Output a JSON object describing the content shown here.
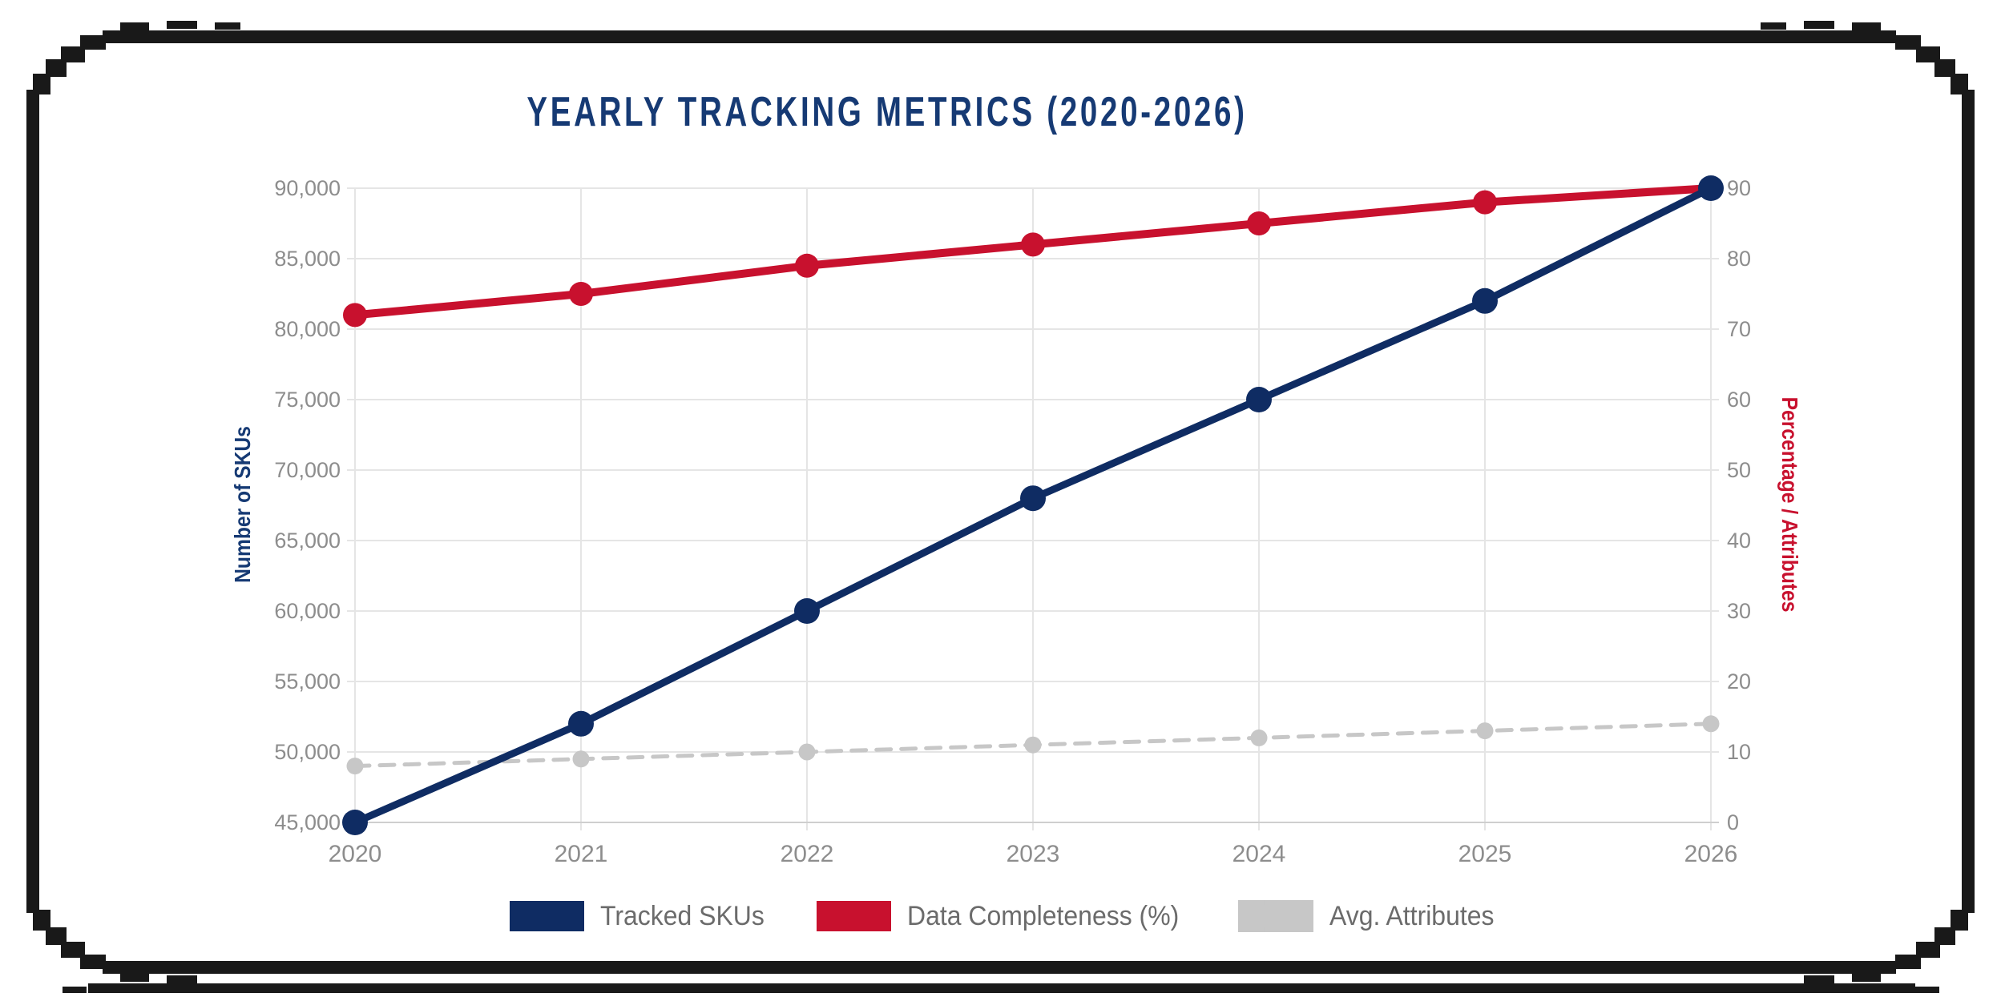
{
  "chart_data": {
    "type": "line",
    "title": "YEARLY TRACKING METRICS (2020-2026)",
    "categories": [
      "2020",
      "2021",
      "2022",
      "2023",
      "2024",
      "2025",
      "2026"
    ],
    "series": [
      {
        "name": "Tracked SKUs",
        "axis": "left",
        "style": "solid",
        "color": "#0f2c63",
        "values": [
          45000,
          52000,
          60000,
          68000,
          75000,
          82000,
          90000
        ]
      },
      {
        "name": "Data Completeness (%)",
        "axis": "right",
        "style": "solid",
        "color": "#c8112e",
        "values": [
          72,
          75,
          79,
          82,
          85,
          88,
          90
        ]
      },
      {
        "name": "Avg. Attributes",
        "axis": "right",
        "style": "dashed",
        "color": "#c7c7c7",
        "values": [
          8,
          9,
          10,
          11,
          12,
          13,
          14
        ]
      }
    ],
    "left_axis": {
      "label": "Number of SKUs",
      "min": 45000,
      "max": 90000,
      "step": 5000,
      "color": "#163a74"
    },
    "right_axis": {
      "label": "Percentage / Attributes",
      "min": 0,
      "max": 90,
      "step": 10,
      "color": "#c8112e"
    },
    "grid": true,
    "legend_position": "bottom",
    "colors": {
      "title": "#163a74",
      "ticks": "#8d8d8d",
      "grid": "#e5e5e5",
      "axis_line": "#cfcfcf",
      "frame": "#191919"
    }
  }
}
